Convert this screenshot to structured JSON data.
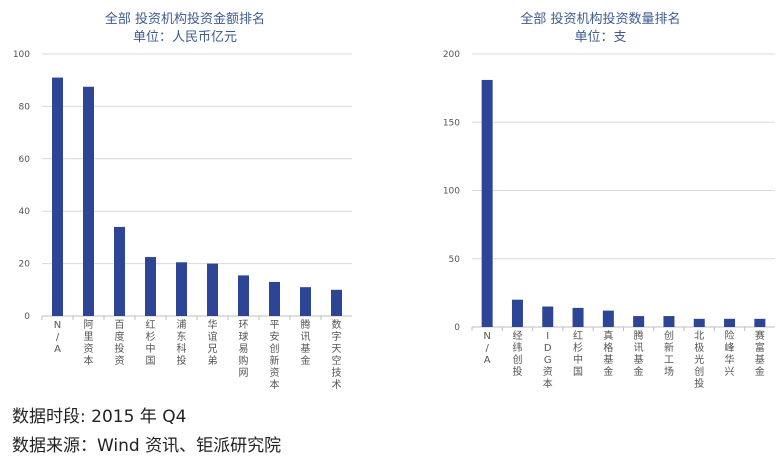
{
  "chart_data": [
    {
      "type": "bar",
      "title": "全部  投资机构投资金额排名",
      "subtitle": "单位：人民币亿元",
      "categories": [
        "N/A",
        "阿里资本",
        "百度投资",
        "红杉中国",
        "浦东科投",
        "华谊兄弟",
        "环球易购网",
        "平安创新资本",
        "腾讯基金",
        "数字天空技术"
      ],
      "values": [
        91,
        87.5,
        34,
        22.5,
        20.5,
        20,
        15.5,
        13,
        11,
        10
      ],
      "ylim": [
        0,
        100
      ],
      "yticks": [
        0,
        20,
        40,
        60,
        80,
        100
      ],
      "grid": true,
      "color": "#2e4494"
    },
    {
      "type": "bar",
      "title": "全部  投资机构投资数量排名",
      "subtitle": "单位：支",
      "categories": [
        "N/A",
        "经纬创投",
        "IDG资本",
        "红杉中国",
        "真格基金",
        "腾讯基金",
        "创新工场",
        "北极光创投",
        "险峰华兴",
        "赛富基金"
      ],
      "values": [
        181,
        20,
        15,
        14,
        12,
        8,
        8,
        6,
        6,
        6
      ],
      "ylim": [
        0,
        200
      ],
      "yticks": [
        0,
        50,
        100,
        150,
        200
      ],
      "grid": true,
      "color": "#2e4494"
    }
  ],
  "footer": {
    "time_text": "数据时段: 2015 年 Q4",
    "source_text": "数据来源：Wind  资讯、钜派研究院"
  }
}
